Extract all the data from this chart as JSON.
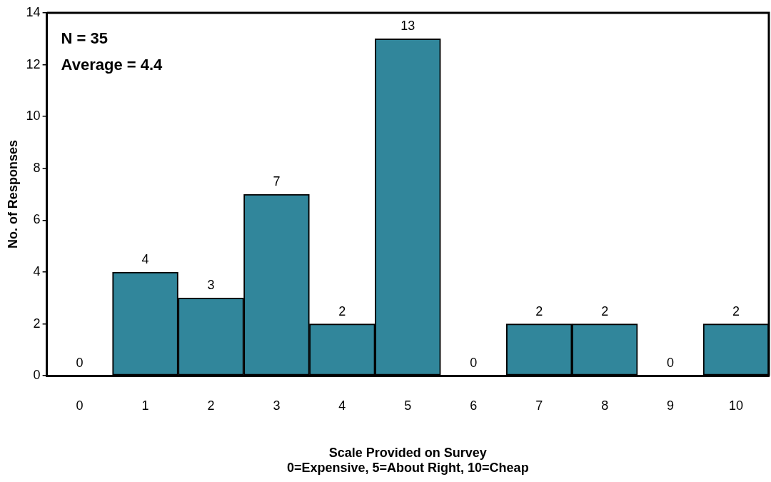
{
  "chart_data": {
    "type": "bar",
    "xlabel": "Scale Provided on Survey\n0=Expensive, 5=About Right, 10=Cheap",
    "ylabel": "No. of Responses",
    "categories": [
      "0",
      "1",
      "2",
      "3",
      "4",
      "5",
      "6",
      "7",
      "8",
      "9",
      "10"
    ],
    "values": [
      0,
      4,
      3,
      7,
      2,
      13,
      0,
      2,
      2,
      0,
      2
    ],
    "color": "#31869b",
    "ylim": [
      0,
      14
    ],
    "yticks": [
      0,
      2,
      4,
      6,
      8,
      10,
      12,
      14
    ],
    "grid": false,
    "legend": false,
    "data_labels": true,
    "annotations": [
      "N = 35",
      "Average = 4.4"
    ]
  }
}
